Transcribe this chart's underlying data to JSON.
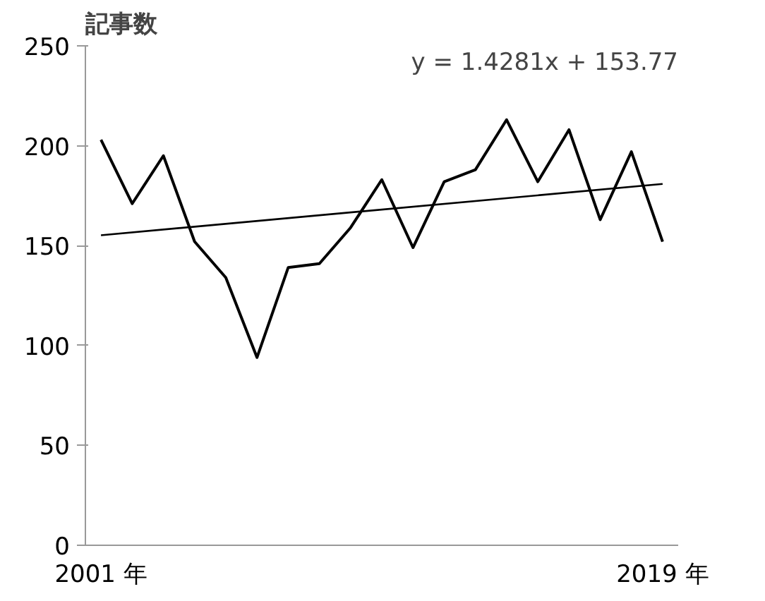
{
  "chart_data": {
    "type": "line",
    "title": "記事数",
    "annotations": [
      "y = 1.4281x + 153.77"
    ],
    "xlim": [
      2000.5,
      2019.5
    ],
    "xticks": [
      {
        "value": 2001,
        "label": "2001 年"
      },
      {
        "value": 2019,
        "label": "2019 年"
      }
    ],
    "ylim": [
      0,
      250
    ],
    "yticks": [
      0,
      50,
      100,
      150,
      200,
      250
    ],
    "grid": false,
    "series": [
      {
        "color": "#000000",
        "x": [
          2001,
          2002,
          2003,
          2004,
          2005,
          2006,
          2007,
          2008,
          2009,
          2010,
          2011,
          2012,
          2013,
          2014,
          2015,
          2016,
          2017,
          2018,
          2019
        ],
        "values": [
          203,
          171,
          195,
          152,
          134,
          94,
          139,
          141,
          159,
          183,
          149,
          182,
          188,
          213,
          182,
          208,
          163,
          197,
          152
        ]
      },
      {
        "color": "#000000",
        "x": [
          2001,
          2019
        ],
        "values": [
          155.2,
          180.9
        ]
      }
    ]
  }
}
